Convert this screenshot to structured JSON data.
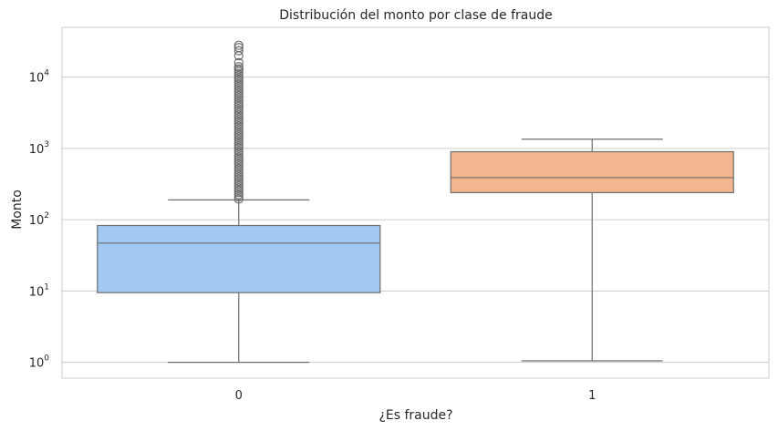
{
  "chart_data": {
    "type": "box",
    "title": "Distribución del monto por clase de fraude",
    "xlabel": "¿Es fraude?",
    "ylabel": "Monto",
    "yscale": "log",
    "ylim": [
      0.6,
      50000
    ],
    "y_ticks": [
      {
        "value": 1,
        "base": "10",
        "exp": "0"
      },
      {
        "value": 10,
        "base": "10",
        "exp": "1"
      },
      {
        "value": 100,
        "base": "10",
        "exp": "2"
      },
      {
        "value": 1000,
        "base": "10",
        "exp": "3"
      },
      {
        "value": 10000,
        "base": "10",
        "exp": "4"
      }
    ],
    "grid": true,
    "categories": [
      "0",
      "1"
    ],
    "boxes": [
      {
        "category": "0",
        "whisker_low": 1.0,
        "q1": 9.5,
        "median": 47,
        "q3": 83,
        "whisker_high": 190,
        "color": "#a1c9f4",
        "outliers_range": [
          195,
          28000
        ],
        "outliers_top_sample": [
          13000,
          16000,
          20000,
          23500,
          26000,
          28000
        ]
      },
      {
        "category": "1",
        "whisker_low": 1.05,
        "q1": 240,
        "median": 390,
        "q3": 900,
        "whisker_high": 1350,
        "color": "#f3b58d"
      }
    ],
    "colors": {
      "line": "#6e6e6e",
      "grid": "#cccccc",
      "frame": "#cccccc"
    }
  }
}
